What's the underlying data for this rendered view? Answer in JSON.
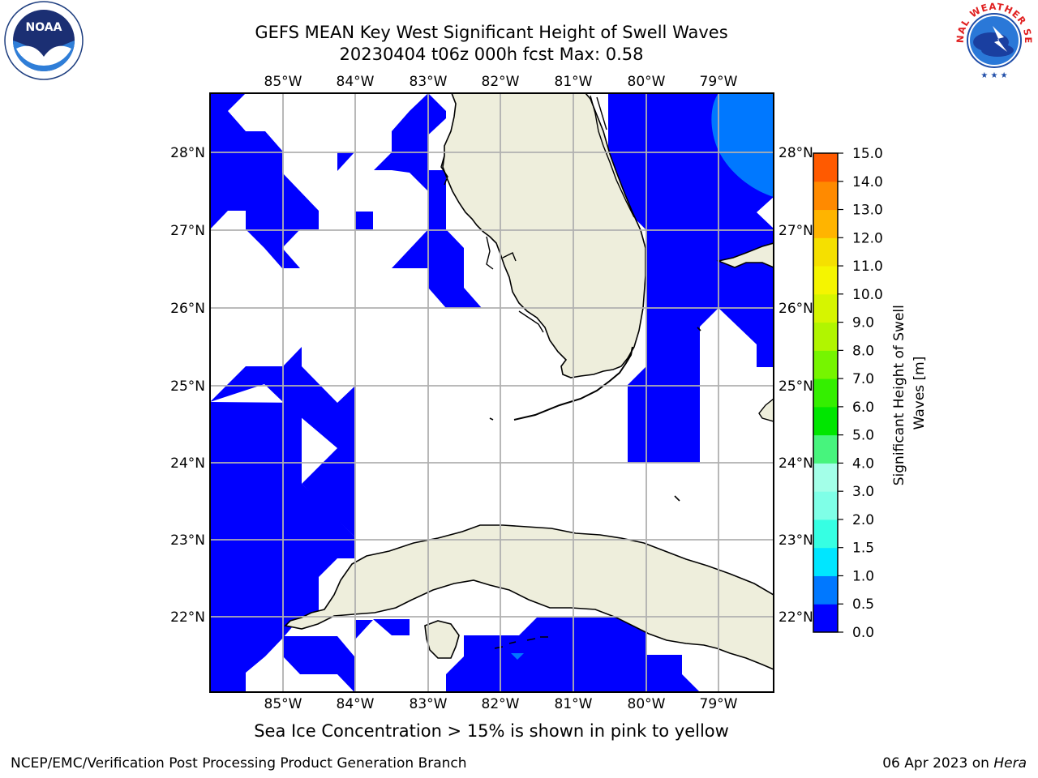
{
  "title": {
    "line1": "GEFS MEAN Key West Significant Height of Swell Waves",
    "line2": "20230404 t06z 000h fcst   Max: 0.58"
  },
  "logos": {
    "left": {
      "text": "NOAA",
      "ring_text": "NATIONAL OCEANIC AND ATMOSPHERIC ADMINISTRATION · U.S. DEPARTMENT OF COMMERCE"
    },
    "right": {
      "ring_text": "NATIONAL WEATHER SERVICE"
    }
  },
  "chart_data": {
    "type": "heatmap",
    "region": "Key West / Florida Straits",
    "lon_range": [
      -86.0,
      -78.25
    ],
    "lat_range": [
      21.05,
      28.75
    ],
    "lon_ticks": [
      "85°W",
      "84°W",
      "83°W",
      "82°W",
      "81°W",
      "80°W",
      "79°W"
    ],
    "lon_tick_values": [
      -85,
      -84,
      -83,
      -82,
      -81,
      -80,
      -79
    ],
    "lat_ticks": [
      "22°N",
      "23°N",
      "24°N",
      "25°N",
      "26°N",
      "27°N",
      "28°N"
    ],
    "lat_tick_values": [
      22,
      23,
      24,
      25,
      26,
      27,
      28
    ],
    "grid": true,
    "max_value": 0.58,
    "colorbar": {
      "label": "Significant Height of Swell Waves [m]",
      "ticks": [
        "0.0",
        "0.5",
        "1.0",
        "1.5",
        "2.0",
        "3.0",
        "4.0",
        "5.0",
        "6.0",
        "7.0",
        "8.0",
        "9.0",
        "10.0",
        "11.0",
        "12.0",
        "13.0",
        "14.0",
        "15.0"
      ],
      "colors": [
        "#0000ff",
        "#0078ff",
        "#00e6ff",
        "#36ffe3",
        "#7fffe7",
        "#a3ffe8",
        "#47f47d",
        "#00e600",
        "#34ef00",
        "#76f500",
        "#b1f500",
        "#d6f500",
        "#f5f500",
        "#f5e000",
        "#ffb400",
        "#ff8a00",
        "#ff5a00",
        "#ff2200"
      ]
    },
    "values_shown": "0.0–0.5 m (blue) in most marine cells; 0.5–1.0 m (lighter blue) in NE corner and a small spot south of Cuba; remaining water below plotted threshold (white)"
  },
  "caption": "Sea Ice Concentration > 15% is shown in pink to yellow",
  "footer": {
    "left": "NCEP/EMC/Verification Post Processing Product Generation Branch",
    "date": "06 Apr 2023 on ",
    "machine": "Hera"
  }
}
